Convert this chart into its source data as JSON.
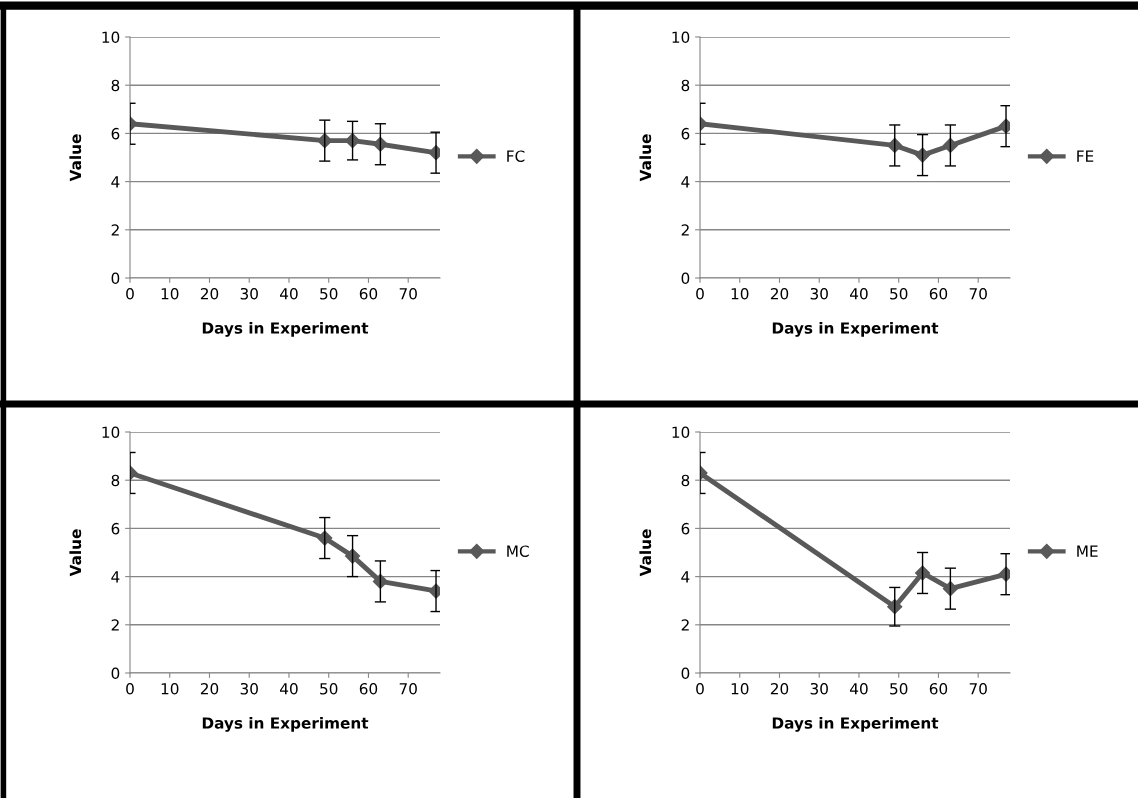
{
  "chart_data": [
    {
      "type": "line",
      "xlabel": "Days in Experiment",
      "ylabel": "Value",
      "x": [
        0,
        49,
        56,
        63,
        77
      ],
      "xlim": [
        0,
        78
      ],
      "xticks": [
        0,
        10,
        20,
        30,
        40,
        50,
        60,
        70
      ],
      "ylim": [
        0,
        10
      ],
      "yticks": [
        0,
        2,
        4,
        6,
        8,
        10
      ],
      "grid": "y",
      "legend": "right",
      "marker": "diamond",
      "line_style": "solid",
      "series": [
        {
          "name": "FC",
          "color": "#595959",
          "values": [
            6.4,
            5.7,
            5.7,
            5.55,
            5.2
          ],
          "errors": [
            0.85,
            0.85,
            0.8,
            0.85,
            0.85
          ]
        }
      ]
    },
    {
      "type": "line",
      "xlabel": "Days in Experiment",
      "ylabel": "Value",
      "x": [
        0,
        49,
        56,
        63,
        77
      ],
      "xlim": [
        0,
        78
      ],
      "xticks": [
        0,
        10,
        20,
        30,
        40,
        50,
        60,
        70
      ],
      "ylim": [
        0,
        10
      ],
      "yticks": [
        0,
        2,
        4,
        6,
        8,
        10
      ],
      "grid": "y",
      "legend": "right",
      "marker": "diamond",
      "line_style": "solid",
      "series": [
        {
          "name": "FE",
          "color": "#595959",
          "values": [
            6.4,
            5.5,
            5.1,
            5.5,
            6.3
          ],
          "errors": [
            0.85,
            0.85,
            0.85,
            0.85,
            0.85
          ]
        }
      ]
    },
    {
      "type": "line",
      "xlabel": "Days in Experiment",
      "ylabel": "Value",
      "x": [
        0,
        49,
        56,
        63,
        77
      ],
      "xlim": [
        0,
        78
      ],
      "xticks": [
        0,
        10,
        20,
        30,
        40,
        50,
        60,
        70
      ],
      "ylim": [
        0,
        10
      ],
      "yticks": [
        0,
        2,
        4,
        6,
        8,
        10
      ],
      "grid": "y",
      "legend": "right",
      "marker": "diamond",
      "line_style": "solid",
      "series": [
        {
          "name": "MC",
          "color": "#595959",
          "values": [
            8.3,
            5.6,
            4.85,
            3.8,
            3.4
          ],
          "errors": [
            0.85,
            0.85,
            0.85,
            0.85,
            0.85
          ]
        }
      ]
    },
    {
      "type": "line",
      "xlabel": "Days in Experiment",
      "ylabel": "Value",
      "x": [
        0,
        49,
        56,
        63,
        77
      ],
      "xlim": [
        0,
        78
      ],
      "xticks": [
        0,
        10,
        20,
        30,
        40,
        50,
        60,
        70
      ],
      "ylim": [
        0,
        10
      ],
      "yticks": [
        0,
        2,
        4,
        6,
        8,
        10
      ],
      "grid": "y",
      "legend": "right",
      "marker": "diamond",
      "line_style": "solid",
      "series": [
        {
          "name": "ME",
          "color": "#595959",
          "values": [
            8.3,
            2.75,
            4.15,
            3.5,
            4.1
          ],
          "errors": [
            0.85,
            0.8,
            0.85,
            0.85,
            0.85
          ]
        }
      ]
    }
  ]
}
